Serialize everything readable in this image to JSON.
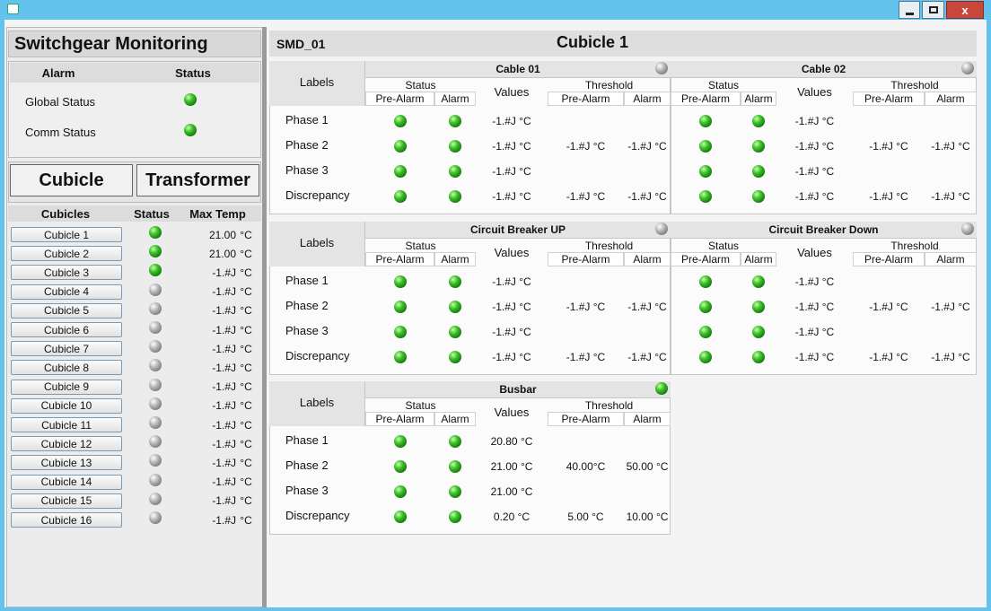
{
  "sidebar": {
    "title": "Switchgear Monitoring",
    "alarm_table": {
      "headers": [
        "Alarm",
        "Status"
      ],
      "rows": [
        {
          "label": "Global Status",
          "status": "green"
        },
        {
          "label": "Comm Status",
          "status": "green"
        }
      ]
    },
    "tabs": [
      "Cubicle",
      "Transformer"
    ],
    "cubicles": {
      "headers": [
        "Cubicles",
        "Status",
        "Max Temp"
      ],
      "rows": [
        {
          "name": "Cubicle 1",
          "status": "green",
          "temp": "21.00",
          "unit": "°C"
        },
        {
          "name": "Cubicle 2",
          "status": "green",
          "temp": "21.00",
          "unit": "°C"
        },
        {
          "name": "Cubicle 3",
          "status": "green",
          "temp": "-1.#J",
          "unit": "°C"
        },
        {
          "name": "Cubicle 4",
          "status": "gray",
          "temp": "-1.#J",
          "unit": "°C"
        },
        {
          "name": "Cubicle 5",
          "status": "gray",
          "temp": "-1.#J",
          "unit": "°C"
        },
        {
          "name": "Cubicle 6",
          "status": "gray",
          "temp": "-1.#J",
          "unit": "°C"
        },
        {
          "name": "Cubicle 7",
          "status": "gray",
          "temp": "-1.#J",
          "unit": "°C"
        },
        {
          "name": "Cubicle 8",
          "status": "gray",
          "temp": "-1.#J",
          "unit": "°C"
        },
        {
          "name": "Cubicle 9",
          "status": "gray",
          "temp": "-1.#J",
          "unit": "°C"
        },
        {
          "name": "Cubicle 10",
          "status": "gray",
          "temp": "-1.#J",
          "unit": "°C"
        },
        {
          "name": "Cubicle 11",
          "status": "gray",
          "temp": "-1.#J",
          "unit": "°C"
        },
        {
          "name": "Cubicle 12",
          "status": "gray",
          "temp": "-1.#J",
          "unit": "°C"
        },
        {
          "name": "Cubicle 13",
          "status": "gray",
          "temp": "-1.#J",
          "unit": "°C"
        },
        {
          "name": "Cubicle 14",
          "status": "gray",
          "temp": "-1.#J",
          "unit": "°C"
        },
        {
          "name": "Cubicle 15",
          "status": "gray",
          "temp": "-1.#J",
          "unit": "°C"
        },
        {
          "name": "Cubicle 16",
          "status": "gray",
          "temp": "-1.#J",
          "unit": "°C"
        }
      ]
    }
  },
  "main": {
    "device": "SMD_01",
    "title": "Cubicle 1",
    "headers": {
      "labels": "Labels",
      "status": "Status",
      "pre_alarm": "Pre-Alarm",
      "alarm": "Alarm",
      "values": "Values",
      "threshold": "Threshold"
    },
    "panels": [
      {
        "title": "Cable 01",
        "status": "gray",
        "rows": [
          {
            "label": "Phase 1",
            "pre_alarm": "green",
            "alarm": "green",
            "value": "-1.#J °C"
          },
          {
            "label": "Phase 2",
            "pre_alarm": "green",
            "alarm": "green",
            "value": "-1.#J °C",
            "threshold_pre_alarm": "-1.#J °C",
            "threshold_alarm": "-1.#J °C"
          },
          {
            "label": "Phase 3",
            "pre_alarm": "green",
            "alarm": "green",
            "value": "-1.#J °C"
          },
          {
            "label": "Discrepancy",
            "pre_alarm": "green",
            "alarm": "green",
            "value": "-1.#J °C",
            "threshold_pre_alarm": "-1.#J °C",
            "threshold_alarm": "-1.#J °C"
          }
        ]
      },
      {
        "title": "Cable 02",
        "status": "gray",
        "rows": [
          {
            "pre_alarm": "green",
            "alarm": "green",
            "value": "-1.#J °C"
          },
          {
            "pre_alarm": "green",
            "alarm": "green",
            "value": "-1.#J °C",
            "threshold_pre_alarm": "-1.#J °C",
            "threshold_alarm": "-1.#J °C"
          },
          {
            "pre_alarm": "green",
            "alarm": "green",
            "value": "-1.#J °C"
          },
          {
            "pre_alarm": "green",
            "alarm": "green",
            "value": "-1.#J °C",
            "threshold_pre_alarm": "-1.#J °C",
            "threshold_alarm": "-1.#J °C"
          }
        ]
      },
      {
        "title": "Circuit Breaker UP",
        "status": "gray",
        "rows": [
          {
            "label": "Phase 1",
            "pre_alarm": "green",
            "alarm": "green",
            "value": "-1.#J °C"
          },
          {
            "label": "Phase 2",
            "pre_alarm": "green",
            "alarm": "green",
            "value": "-1.#J °C",
            "threshold_pre_alarm": "-1.#J °C",
            "threshold_alarm": "-1.#J °C"
          },
          {
            "label": "Phase 3",
            "pre_alarm": "green",
            "alarm": "green",
            "value": "-1.#J °C"
          },
          {
            "label": "Discrepancy",
            "pre_alarm": "green",
            "alarm": "green",
            "value": "-1.#J °C",
            "threshold_pre_alarm": "-1.#J °C",
            "threshold_alarm": "-1.#J °C"
          }
        ]
      },
      {
        "title": "Circuit Breaker Down",
        "status": "gray",
        "rows": [
          {
            "pre_alarm": "green",
            "alarm": "green",
            "value": "-1.#J °C"
          },
          {
            "pre_alarm": "green",
            "alarm": "green",
            "value": "-1.#J °C",
            "threshold_pre_alarm": "-1.#J °C",
            "threshold_alarm": "-1.#J °C"
          },
          {
            "pre_alarm": "green",
            "alarm": "green",
            "value": "-1.#J °C"
          },
          {
            "pre_alarm": "green",
            "alarm": "green",
            "value": "-1.#J °C",
            "threshold_pre_alarm": "-1.#J °C",
            "threshold_alarm": "-1.#J °C"
          }
        ]
      },
      {
        "title": "Busbar",
        "status": "green",
        "rows": [
          {
            "label": "Phase 1",
            "pre_alarm": "green",
            "alarm": "green",
            "value": "20.80 °C"
          },
          {
            "label": "Phase 2",
            "pre_alarm": "green",
            "alarm": "green",
            "value": "21.00 °C",
            "threshold_pre_alarm": "40.00°C",
            "threshold_alarm": "50.00 °C"
          },
          {
            "label": "Phase 3",
            "pre_alarm": "green",
            "alarm": "green",
            "value": "21.00 °C"
          },
          {
            "label": "Discrepancy",
            "pre_alarm": "green",
            "alarm": "green",
            "value": "0.20 °C",
            "threshold_pre_alarm": "5.00 °C",
            "threshold_alarm": "10.00 °C"
          }
        ]
      }
    ]
  }
}
